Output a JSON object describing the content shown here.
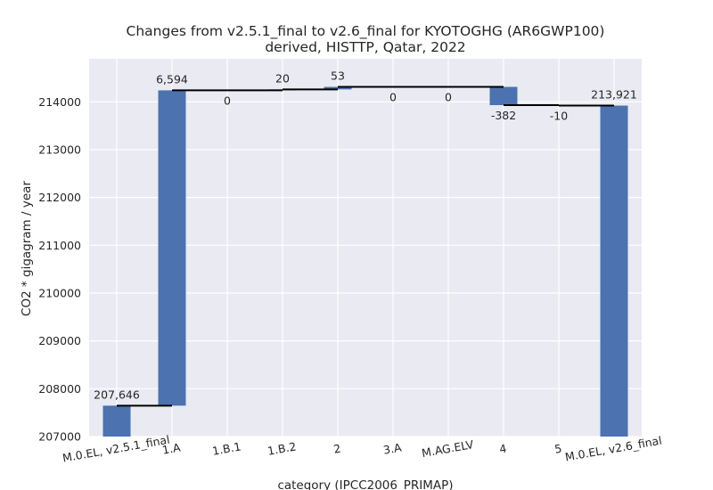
{
  "chart_data": {
    "type": "bar",
    "subtype": "waterfall",
    "title": "Changes from v2.5.1_final to v2.6_final for KYOTOGHG (AR6GWP100)",
    "subtitle": "derived, HISTTP, Qatar, 2022",
    "xlabel": "category (IPCC2006_PRIMAP)",
    "ylabel": "CO2 * gigagram / year",
    "categories": [
      "M.0.EL, v2.5.1_final",
      "1.A",
      "1.B.1",
      "1.B.2",
      "2",
      "3.A",
      "M.AG.ELV",
      "4",
      "5",
      "M.0.EL, v2.6_final"
    ],
    "values": [
      207646,
      6594,
      0,
      20,
      53,
      0,
      0,
      -382,
      -10,
      213921
    ],
    "value_labels": [
      "207,646",
      "6,594",
      "0",
      "20",
      "53",
      "0",
      "0",
      "-382",
      "-10",
      "213,921"
    ],
    "yticks": [
      207000,
      208000,
      209000,
      210000,
      211000,
      212000,
      213000,
      214000
    ],
    "ylim": [
      207000,
      214900
    ],
    "grid": true,
    "bar_color": "#4c72b0",
    "background_color": "#eaeaf2"
  }
}
